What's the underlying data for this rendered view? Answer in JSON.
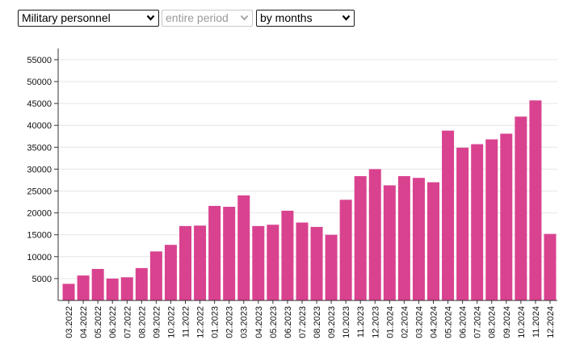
{
  "controls": {
    "metric": {
      "value": "Military personnel"
    },
    "period": {
      "value": "entire period",
      "disabled": true
    },
    "grouping": {
      "value": "by months"
    }
  },
  "colors": {
    "bar": "#d9428f",
    "grid": "#e6e6e6",
    "axis": "#333333",
    "disabled_text": "#9a9a9a"
  },
  "icons": {
    "select_arrow": "chevron-down-icon"
  },
  "chart_data": {
    "type": "bar",
    "categories": [
      "03.2022",
      "04.2022",
      "05.2022",
      "06.2022",
      "07.2022",
      "08.2022",
      "09.2022",
      "10.2022",
      "11.2022",
      "12.2022",
      "01.2023",
      "02.2023",
      "03.2023",
      "04.2023",
      "05.2023",
      "06.2023",
      "07.2023",
      "08.2023",
      "09.2023",
      "10.2023",
      "11.2023",
      "12.2023",
      "01.2024",
      "02.2024",
      "03.2024",
      "04.2024",
      "05.2024",
      "06.2024",
      "07.2024",
      "08.2024",
      "09.2024",
      "10.2024",
      "11.2024",
      "12.2024"
    ],
    "values": [
      3800,
      5700,
      7200,
      5000,
      5300,
      7400,
      11200,
      12700,
      17000,
      17100,
      21600,
      21400,
      24000,
      17000,
      17300,
      20500,
      17800,
      16800,
      15000,
      23000,
      28400,
      30000,
      26300,
      28400,
      28000,
      27000,
      38800,
      34900,
      35700,
      36800,
      38100,
      42000,
      45700,
      15200
    ],
    "yticks": [
      5000,
      10000,
      15000,
      20000,
      25000,
      30000,
      35000,
      40000,
      45000,
      50000,
      55000
    ],
    "ylim": [
      0,
      58000
    ],
    "grid": true,
    "legend": "none",
    "title": "",
    "xlabel": "",
    "ylabel": ""
  }
}
